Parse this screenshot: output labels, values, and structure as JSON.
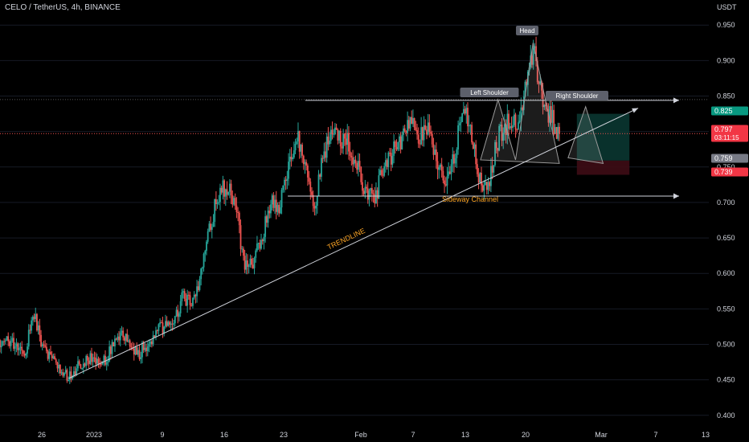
{
  "header": {
    "symbol_title": "CELO / TetherUS, 4h, BINANCE",
    "axis_unit": "USDT"
  },
  "colors": {
    "background": "#000000",
    "up": "#26a69a",
    "down": "#ef5350",
    "grid": "#161a25",
    "axis_text": "#d1d4dc",
    "line": "#d1d4dc",
    "target_zone": "#0a3a34",
    "stop_zone": "#3e0c15",
    "price_tag_red": "#f23645",
    "price_tag_green": "#089981",
    "price_tag_gray": "#787b86"
  },
  "chart_data": {
    "type": "candlestick",
    "title": "CELO / TetherUS, 4h, BINANCE",
    "ylabel": "USDT",
    "ylim": [
      0.385,
      0.965
    ],
    "y_ticks": [
      "0.950",
      "0.900",
      "0.850",
      "0.800",
      "0.750",
      "0.700",
      "0.650",
      "0.600",
      "0.550",
      "0.500",
      "0.450",
      "0.400"
    ],
    "x_ticks": [
      "26",
      "2023",
      "9",
      "16",
      "23",
      "Feb",
      "7",
      "13",
      "20",
      "Mar",
      "7",
      "13"
    ],
    "grid": false,
    "series": [
      {
        "kind": "price",
        "points": [
          {
            "x": "2022-12-22",
            "y": 0.506
          },
          {
            "x": "2022-12-24",
            "y": 0.489
          },
          {
            "x": "2022-12-25",
            "y": 0.545
          },
          {
            "x": "2022-12-26",
            "y": 0.497
          },
          {
            "x": "2022-12-28",
            "y": 0.462
          },
          {
            "x": "2022-12-29",
            "y": 0.455
          },
          {
            "x": "2022-12-31",
            "y": 0.479
          },
          {
            "x": "2023-01-02",
            "y": 0.478
          },
          {
            "x": "2023-01-04",
            "y": 0.511
          },
          {
            "x": "2023-01-06",
            "y": 0.487
          },
          {
            "x": "2023-01-08",
            "y": 0.518
          },
          {
            "x": "2023-01-10",
            "y": 0.535
          },
          {
            "x": "2023-01-11",
            "y": 0.566
          },
          {
            "x": "2023-01-12",
            "y": 0.555
          },
          {
            "x": "2023-01-13",
            "y": 0.597
          },
          {
            "x": "2023-01-14",
            "y": 0.66
          },
          {
            "x": "2023-01-15",
            "y": 0.71
          },
          {
            "x": "2023-01-16",
            "y": 0.725
          },
          {
            "x": "2023-01-17",
            "y": 0.7
          },
          {
            "x": "2023-01-18",
            "y": 0.615
          },
          {
            "x": "2023-01-19",
            "y": 0.612
          },
          {
            "x": "2023-01-20",
            "y": 0.65
          },
          {
            "x": "2023-01-21",
            "y": 0.7
          },
          {
            "x": "2023-01-22",
            "y": 0.686
          },
          {
            "x": "2023-01-23",
            "y": 0.75
          },
          {
            "x": "2023-01-24",
            "y": 0.79
          },
          {
            "x": "2023-01-25",
            "y": 0.763
          },
          {
            "x": "2023-01-26",
            "y": 0.69
          },
          {
            "x": "2023-01-27",
            "y": 0.76
          },
          {
            "x": "2023-01-28",
            "y": 0.8
          },
          {
            "x": "2023-01-30",
            "y": 0.784
          },
          {
            "x": "2023-02-01",
            "y": 0.71
          },
          {
            "x": "2023-02-02",
            "y": 0.706
          },
          {
            "x": "2023-02-03",
            "y": 0.757
          },
          {
            "x": "2023-02-05",
            "y": 0.782
          },
          {
            "x": "2023-02-06",
            "y": 0.821
          },
          {
            "x": "2023-02-07",
            "y": 0.793
          },
          {
            "x": "2023-02-08",
            "y": 0.808
          },
          {
            "x": "2023-02-09",
            "y": 0.76
          },
          {
            "x": "2023-02-10",
            "y": 0.72
          },
          {
            "x": "2023-02-11",
            "y": 0.76
          },
          {
            "x": "2023-02-12",
            "y": 0.85
          },
          {
            "x": "2023-02-13",
            "y": 0.79
          },
          {
            "x": "2023-02-14",
            "y": 0.725
          },
          {
            "x": "2023-02-15",
            "y": 0.73
          },
          {
            "x": "2023-02-16",
            "y": 0.79
          },
          {
            "x": "2023-02-17",
            "y": 0.81
          },
          {
            "x": "2023-02-18",
            "y": 0.812
          },
          {
            "x": "2023-02-19",
            "y": 0.85
          },
          {
            "x": "2023-02-20",
            "y": 0.915
          },
          {
            "x": "2023-02-21",
            "y": 0.85
          },
          {
            "x": "2023-02-22",
            "y": 0.82
          },
          {
            "x": "2023-02-23",
            "y": 0.797
          }
        ]
      }
    ],
    "annotations": {
      "text_labels": [
        "TRENDLINE",
        "Sideway Channel"
      ],
      "pattern_labels": [
        "Left Shoulder",
        "Head",
        "Right Shoulder"
      ],
      "horizontal_levels": [
        0.844,
        0.709
      ],
      "trendline": {
        "from": {
          "x": "2022-12-29",
          "y": 0.452
        },
        "to": {
          "x": "2023-03-04",
          "y": 0.833
        }
      },
      "head_and_shoulders": [
        {
          "x": "2023-02-14",
          "y": 0.76
        },
        {
          "x": "2023-02-16",
          "y": 0.845
        },
        {
          "x": "2023-02-18",
          "y": 0.76
        },
        {
          "x": "2023-02-20",
          "y": 0.925
        },
        {
          "x": "2023-02-23",
          "y": 0.755
        }
      ],
      "projection": [
        {
          "x": "2023-02-24",
          "y": 0.763
        },
        {
          "x": "2023-02-26",
          "y": 0.835
        },
        {
          "x": "2023-02-28",
          "y": 0.755
        }
      ],
      "position": {
        "from_x": "2023-02-25",
        "to_x": "2023-03-03",
        "entry": 0.759,
        "target": 0.825,
        "stop": 0.739
      }
    },
    "price_tags": [
      {
        "price": "0.825",
        "color_key": "price_tag_green"
      },
      {
        "price": "0.797",
        "sub": "03:11:15",
        "color_key": "price_tag_red"
      },
      {
        "price": "0.759",
        "color_key": "price_tag_gray"
      },
      {
        "price": "0.739",
        "color_key": "price_tag_red"
      }
    ]
  }
}
